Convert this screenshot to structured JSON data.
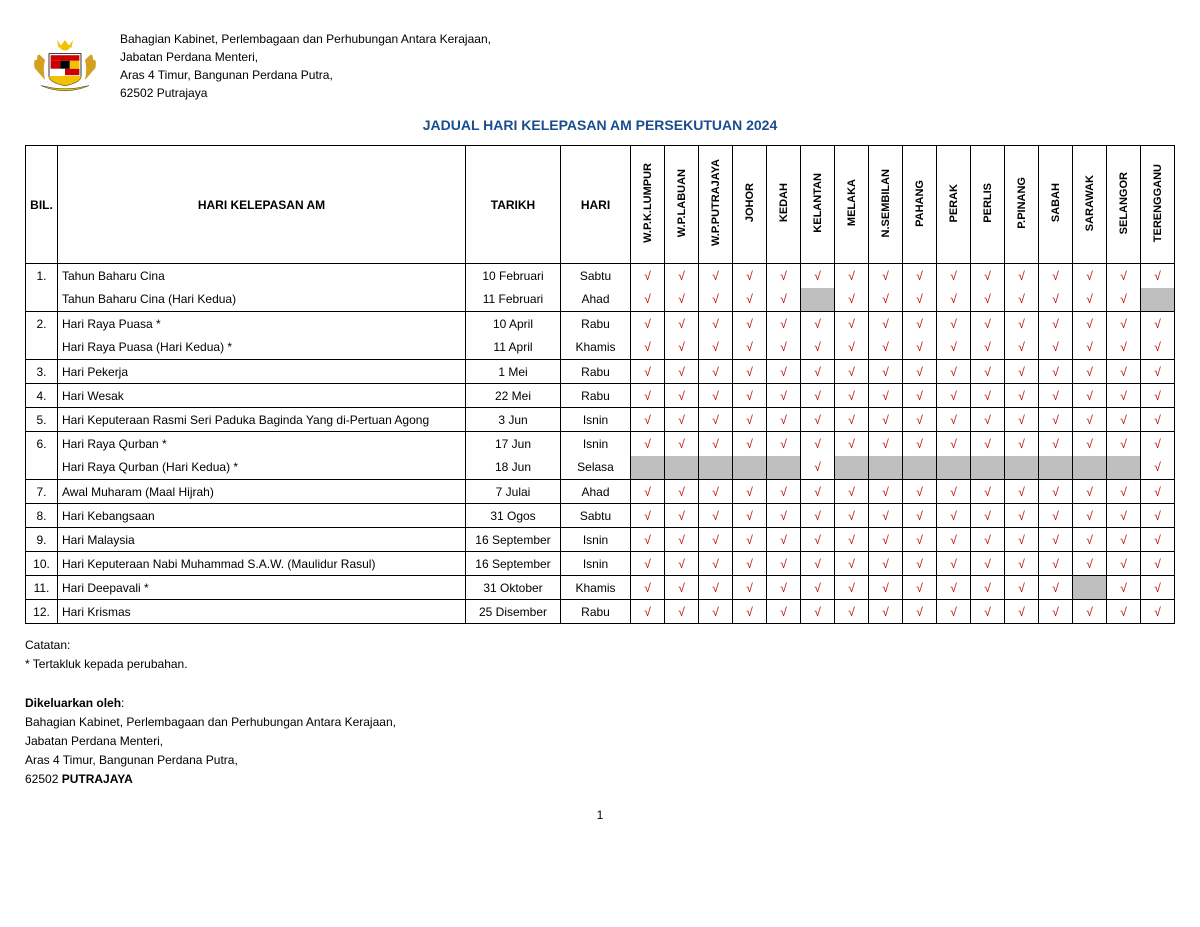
{
  "header": {
    "line1": "Bahagian Kabinet, Perlembagaan dan Perhubungan Antara Kerajaan,",
    "line2": "Jabatan Perdana Menteri,",
    "line3": "Aras 4 Timur, Bangunan Perdana Putra,",
    "line4": "62502 Putrajaya"
  },
  "title": "JADUAL HARI KELEPASAN AM PERSEKUTUAN 2024",
  "columns": {
    "bil": "BIL.",
    "holiday": "HARI KELEPASAN AM",
    "tarikh": "TARIKH",
    "hari": "HARI"
  },
  "states": [
    "W.P.K.LUMPUR",
    "W.P.LABUAN",
    "W.P.PUTRAJAYA",
    "JOHOR",
    "KEDAH",
    "KELANTAN",
    "MELAKA",
    "N.SEMBILAN",
    "PAHANG",
    "PERAK",
    "PERLIS",
    "P.PINANG",
    "SABAH",
    "SARAWAK",
    "SELANGOR",
    "TERENGGANU"
  ],
  "rows": [
    {
      "num": "1.",
      "name": "Tahun Baharu Cina",
      "date": "10 Februari",
      "day": "Sabtu",
      "marks": [
        "y",
        "y",
        "y",
        "y",
        "y",
        "y",
        "y",
        "y",
        "y",
        "y",
        "y",
        "y",
        "y",
        "y",
        "y",
        "y"
      ],
      "group": "top"
    },
    {
      "num": "",
      "name": "Tahun Baharu Cina (Hari Kedua)",
      "date": "11 Februari",
      "day": "Ahad",
      "marks": [
        "y",
        "y",
        "y",
        "y",
        "y",
        "s",
        "y",
        "y",
        "y",
        "y",
        "y",
        "y",
        "y",
        "y",
        "y",
        "s"
      ],
      "group": "bot"
    },
    {
      "num": "2.",
      "name": "Hari Raya Puasa *",
      "date": "10 April",
      "day": "Rabu",
      "marks": [
        "y",
        "y",
        "y",
        "y",
        "y",
        "y",
        "y",
        "y",
        "y",
        "y",
        "y",
        "y",
        "y",
        "y",
        "y",
        "y"
      ],
      "group": "top"
    },
    {
      "num": "",
      "name": "Hari Raya Puasa (Hari Kedua) *",
      "date": "11 April",
      "day": "Khamis",
      "marks": [
        "y",
        "y",
        "y",
        "y",
        "y",
        "y",
        "y",
        "y",
        "y",
        "y",
        "y",
        "y",
        "y",
        "y",
        "y",
        "y"
      ],
      "group": "bot"
    },
    {
      "num": "3.",
      "name": "Hari Pekerja",
      "date": "1 Mei",
      "day": "Rabu",
      "marks": [
        "y",
        "y",
        "y",
        "y",
        "y",
        "y",
        "y",
        "y",
        "y",
        "y",
        "y",
        "y",
        "y",
        "y",
        "y",
        "y"
      ]
    },
    {
      "num": "4.",
      "name": "Hari Wesak",
      "date": "22 Mei",
      "day": "Rabu",
      "marks": [
        "y",
        "y",
        "y",
        "y",
        "y",
        "y",
        "y",
        "y",
        "y",
        "y",
        "y",
        "y",
        "y",
        "y",
        "y",
        "y"
      ]
    },
    {
      "num": "5.",
      "name": "Hari Keputeraan Rasmi Seri Paduka Baginda Yang di-Pertuan Agong",
      "date": "3 Jun",
      "day": "Isnin",
      "marks": [
        "y",
        "y",
        "y",
        "y",
        "y",
        "y",
        "y",
        "y",
        "y",
        "y",
        "y",
        "y",
        "y",
        "y",
        "y",
        "y"
      ]
    },
    {
      "num": "6.",
      "name": "Hari Raya Qurban *",
      "date": "17 Jun",
      "day": "Isnin",
      "marks": [
        "y",
        "y",
        "y",
        "y",
        "y",
        "y",
        "y",
        "y",
        "y",
        "y",
        "y",
        "y",
        "y",
        "y",
        "y",
        "y"
      ],
      "group": "top"
    },
    {
      "num": "",
      "name": "Hari Raya Qurban (Hari Kedua) *",
      "date": "18 Jun",
      "day": "Selasa",
      "marks": [
        "s",
        "s",
        "s",
        "s",
        "s",
        "y",
        "s",
        "s",
        "s",
        "s",
        "s",
        "s",
        "s",
        "s",
        "s",
        "y"
      ],
      "group": "bot"
    },
    {
      "num": "7.",
      "name": "Awal Muharam (Maal Hijrah)",
      "date": "7 Julai",
      "day": "Ahad",
      "marks": [
        "y",
        "y",
        "y",
        "y",
        "y",
        "y",
        "y",
        "y",
        "y",
        "y",
        "y",
        "y",
        "y",
        "y",
        "y",
        "y"
      ]
    },
    {
      "num": "8.",
      "name": "Hari Kebangsaan",
      "date": "31 Ogos",
      "day": "Sabtu",
      "marks": [
        "y",
        "y",
        "y",
        "y",
        "y",
        "y",
        "y",
        "y",
        "y",
        "y",
        "y",
        "y",
        "y",
        "y",
        "y",
        "y"
      ]
    },
    {
      "num": "9.",
      "name": "Hari Malaysia",
      "date": "16 September",
      "day": "Isnin",
      "marks": [
        "y",
        "y",
        "y",
        "y",
        "y",
        "y",
        "y",
        "y",
        "y",
        "y",
        "y",
        "y",
        "y",
        "y",
        "y",
        "y"
      ]
    },
    {
      "num": "10.",
      "name": "Hari Keputeraan Nabi Muhammad S.A.W. (Maulidur Rasul)",
      "date": "16 September",
      "day": "Isnin",
      "marks": [
        "y",
        "y",
        "y",
        "y",
        "y",
        "y",
        "y",
        "y",
        "y",
        "y",
        "y",
        "y",
        "y",
        "y",
        "y",
        "y"
      ]
    },
    {
      "num": "11.",
      "name": "Hari Deepavali *",
      "date": "31 Oktober",
      "day": "Khamis",
      "marks": [
        "y",
        "y",
        "y",
        "y",
        "y",
        "y",
        "y",
        "y",
        "y",
        "y",
        "y",
        "y",
        "y",
        "s",
        "y",
        "y"
      ]
    },
    {
      "num": "12.",
      "name": "Hari Krismas",
      "date": "25 Disember",
      "day": "Rabu",
      "marks": [
        "y",
        "y",
        "y",
        "y",
        "y",
        "y",
        "y",
        "y",
        "y",
        "y",
        "y",
        "y",
        "y",
        "y",
        "y",
        "y"
      ]
    }
  ],
  "checkmark": "√",
  "footer": {
    "catatan_label": "Catatan:",
    "catatan_text": "*   Tertakluk kepada perubahan.",
    "issued_label": "Dikeluarkan oleh",
    "line1": "Bahagian Kabinet, Perlembagaan dan Perhubungan Antara Kerajaan,",
    "line2": "Jabatan Perdana Menteri,",
    "line3": "Aras 4 Timur, Bangunan Perdana Putra,",
    "line4_a": "62502 ",
    "line4_b": "PUTRAJAYA"
  },
  "page_number": "1",
  "colors": {
    "title": "#1a4d8f",
    "check": "#c00000",
    "shade": "#bfbfbf",
    "border": "#000000"
  }
}
